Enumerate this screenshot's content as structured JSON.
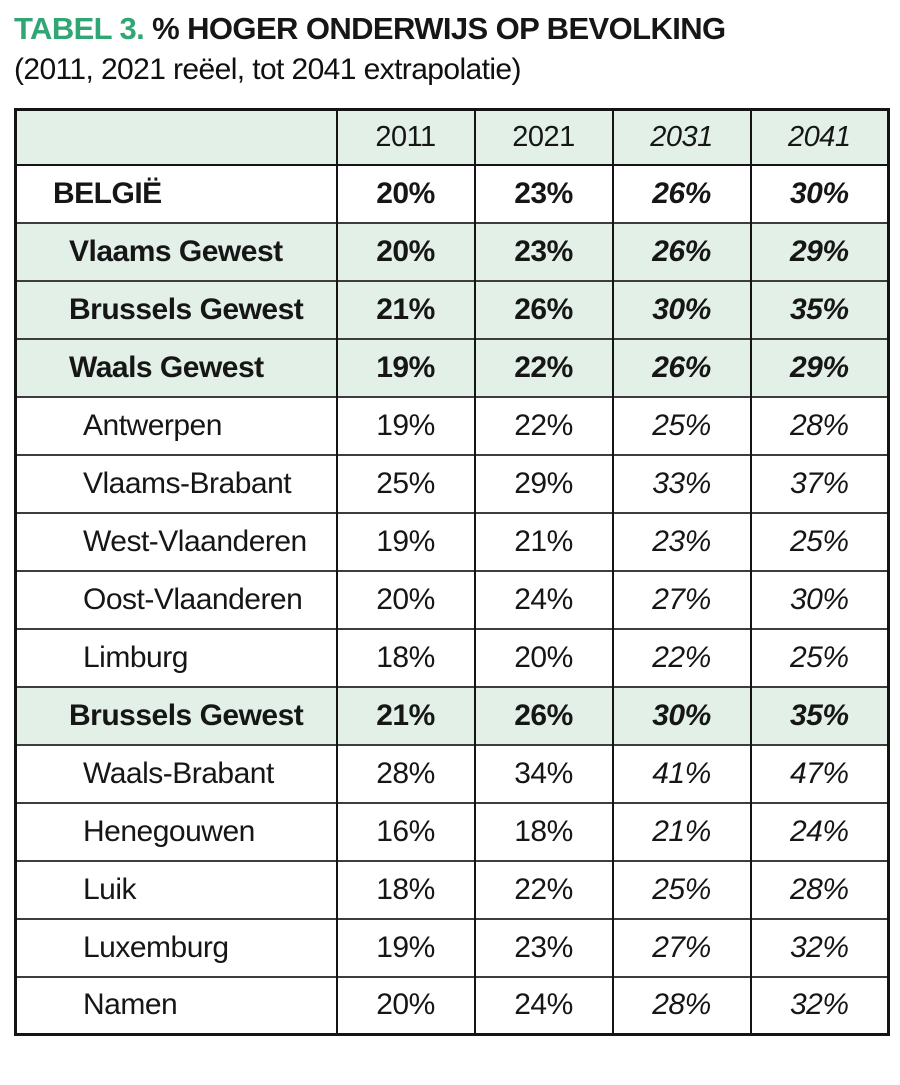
{
  "colors": {
    "accent_green": "#2fa673",
    "row_green": "#e2f0e8",
    "border_dark": "#141414",
    "border_mid": "#3d3d3d"
  },
  "chart_data": {
    "type": "table",
    "title_prefix": "TABEL 3.",
    "title": "% HOGER ONDERWIJS OP BEVOLKING",
    "subtitle": "(2011, 2021 reëel, tot 2041 extrapolatie)",
    "unit": "%",
    "columns": [
      "",
      "2011",
      "2021",
      "2031",
      "2041"
    ],
    "italic_columns": [
      "2031",
      "2041"
    ],
    "rows": [
      {
        "label": "BELGIË",
        "values": [
          20,
          23,
          26,
          30
        ],
        "bold": true,
        "green": false,
        "indent": 0
      },
      {
        "label": "Vlaams Gewest",
        "values": [
          20,
          23,
          26,
          29
        ],
        "bold": true,
        "green": true,
        "indent": 1
      },
      {
        "label": "Brussels Gewest",
        "values": [
          21,
          26,
          30,
          35
        ],
        "bold": true,
        "green": true,
        "indent": 1
      },
      {
        "label": "Waals Gewest",
        "values": [
          19,
          22,
          26,
          29
        ],
        "bold": true,
        "green": true,
        "indent": 1
      },
      {
        "label": "Antwerpen",
        "values": [
          19,
          22,
          25,
          28
        ],
        "bold": false,
        "green": false,
        "indent": 2
      },
      {
        "label": "Vlaams-Brabant",
        "values": [
          25,
          29,
          33,
          37
        ],
        "bold": false,
        "green": false,
        "indent": 2
      },
      {
        "label": "West-Vlaanderen",
        "values": [
          19,
          21,
          23,
          25
        ],
        "bold": false,
        "green": false,
        "indent": 2
      },
      {
        "label": "Oost-Vlaanderen",
        "values": [
          20,
          24,
          27,
          30
        ],
        "bold": false,
        "green": false,
        "indent": 2
      },
      {
        "label": "Limburg",
        "values": [
          18,
          20,
          22,
          25
        ],
        "bold": false,
        "green": false,
        "indent": 2
      },
      {
        "label": "Brussels Gewest",
        "values": [
          21,
          26,
          30,
          35
        ],
        "bold": true,
        "green": true,
        "indent": 1
      },
      {
        "label": "Waals-Brabant",
        "values": [
          28,
          34,
          41,
          47
        ],
        "bold": false,
        "green": false,
        "indent": 2
      },
      {
        "label": "Henegouwen",
        "values": [
          16,
          18,
          21,
          24
        ],
        "bold": false,
        "green": false,
        "indent": 2
      },
      {
        "label": "Luik",
        "values": [
          18,
          22,
          25,
          28
        ],
        "bold": false,
        "green": false,
        "indent": 2
      },
      {
        "label": "Luxemburg",
        "values": [
          19,
          23,
          27,
          32
        ],
        "bold": false,
        "green": false,
        "indent": 2
      },
      {
        "label": "Namen",
        "values": [
          20,
          24,
          28,
          32
        ],
        "bold": false,
        "green": false,
        "indent": 2
      }
    ]
  }
}
